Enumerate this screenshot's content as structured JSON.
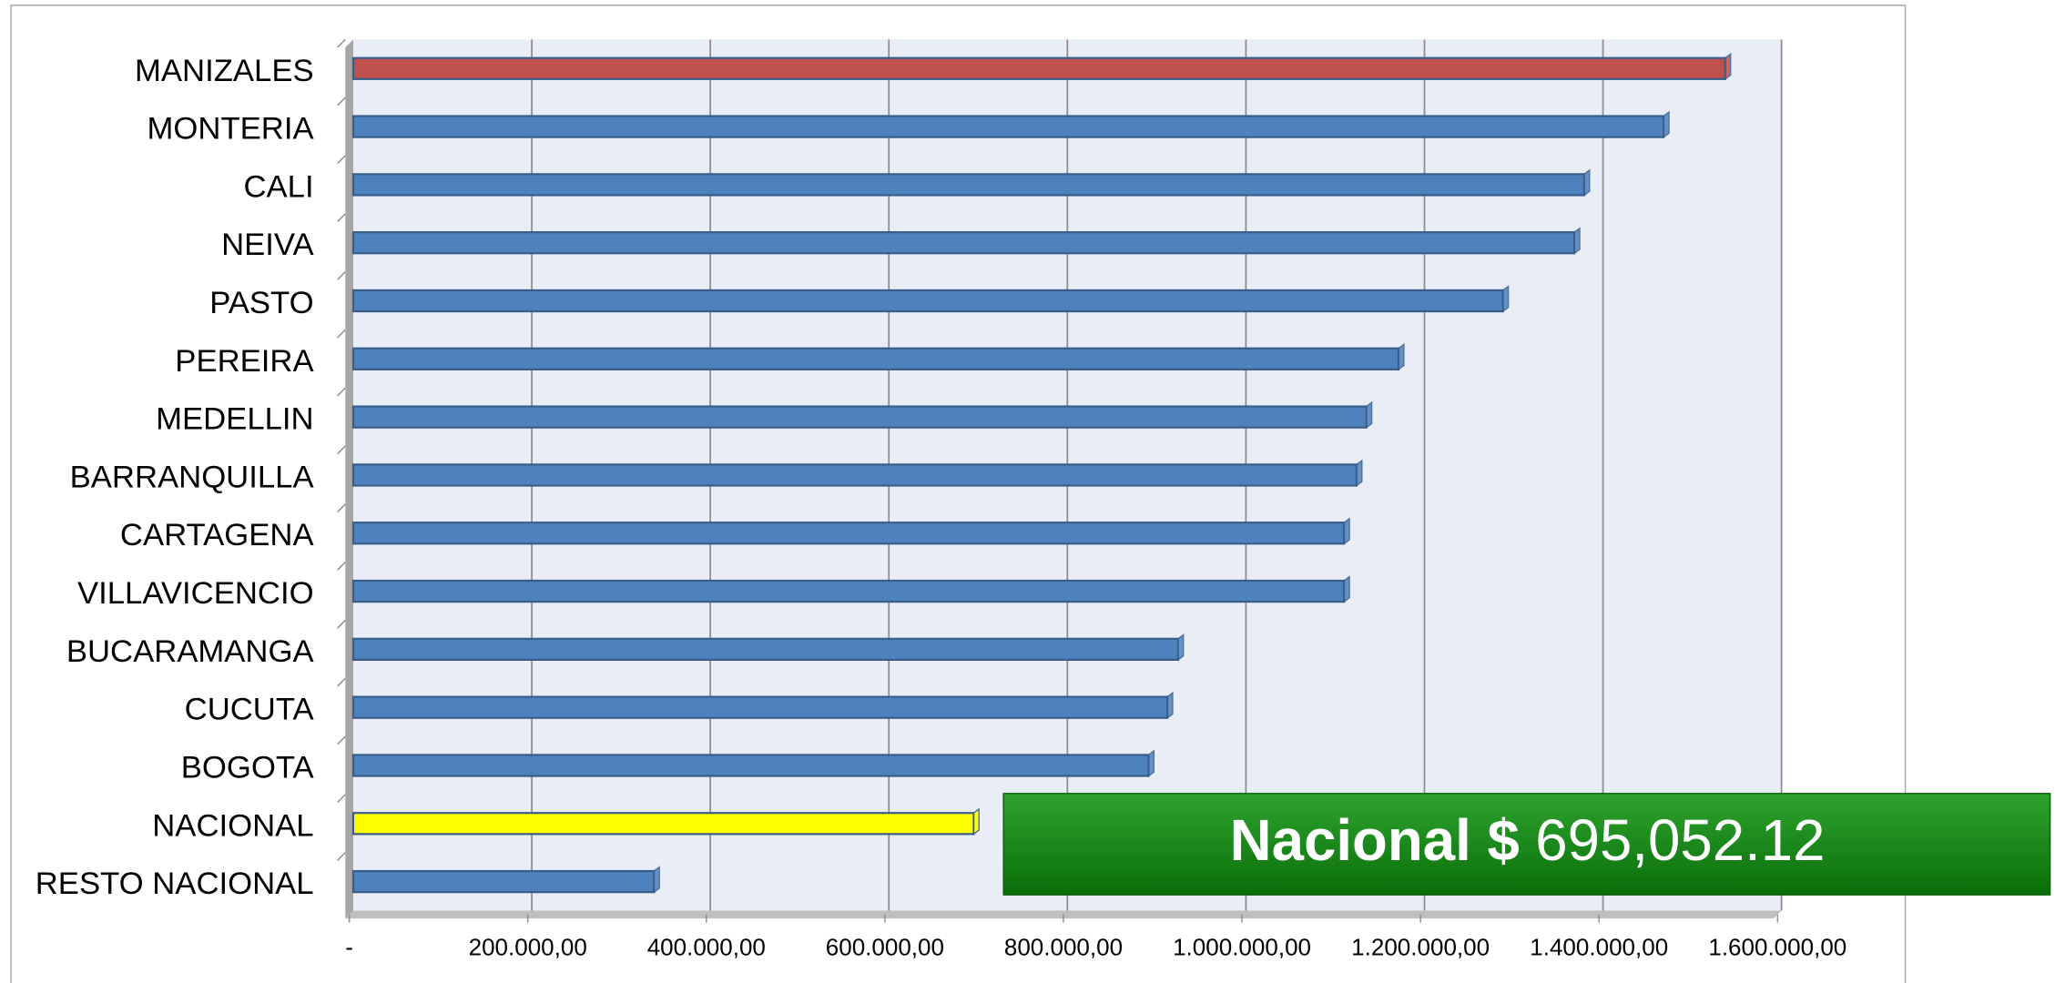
{
  "chart_data": {
    "type": "hbar",
    "categories": [
      "MANIZALES",
      "MONTERIA",
      "CALI",
      "NEIVA",
      "PASTO",
      "PEREIRA",
      "MEDELLIN",
      "BARRANQUILLA",
      "CARTAGENA",
      "VILLAVICENCIO",
      "BUCARAMANGA",
      "CUCUTA",
      "BOGOTA",
      "NACIONAL",
      "RESTO NACIONAL"
    ],
    "values": [
      1537000,
      1468000,
      1379000,
      1368000,
      1288000,
      1171000,
      1135000,
      1124000,
      1110000,
      1110000,
      924000,
      912000,
      891000,
      695052.12,
      337000
    ],
    "colors": [
      "#c0504d",
      "#4f81bd",
      "#4f81bd",
      "#4f81bd",
      "#4f81bd",
      "#4f81bd",
      "#4f81bd",
      "#4f81bd",
      "#4f81bd",
      "#4f81bd",
      "#4f81bd",
      "#4f81bd",
      "#4f81bd",
      "#ffff00",
      "#4f81bd"
    ],
    "xlim": [
      0,
      1600000
    ],
    "xticks": [
      {
        "value": 0,
        "label": "-"
      },
      {
        "value": 200000,
        "label": "200.000,00"
      },
      {
        "value": 400000,
        "label": "400.000,00"
      },
      {
        "value": 600000,
        "label": "600.000,00"
      },
      {
        "value": 800000,
        "label": "800.000,00"
      },
      {
        "value": 1000000,
        "label": "1.000.000,00"
      },
      {
        "value": 1200000,
        "label": "1.200.000,00"
      },
      {
        "value": 1400000,
        "label": "1.400.000,00"
      },
      {
        "value": 1600000,
        "label": "1.600.000,00"
      }
    ],
    "grid": true,
    "annotation": {
      "bold": "Nacional $",
      "text": "695,052.12"
    }
  }
}
